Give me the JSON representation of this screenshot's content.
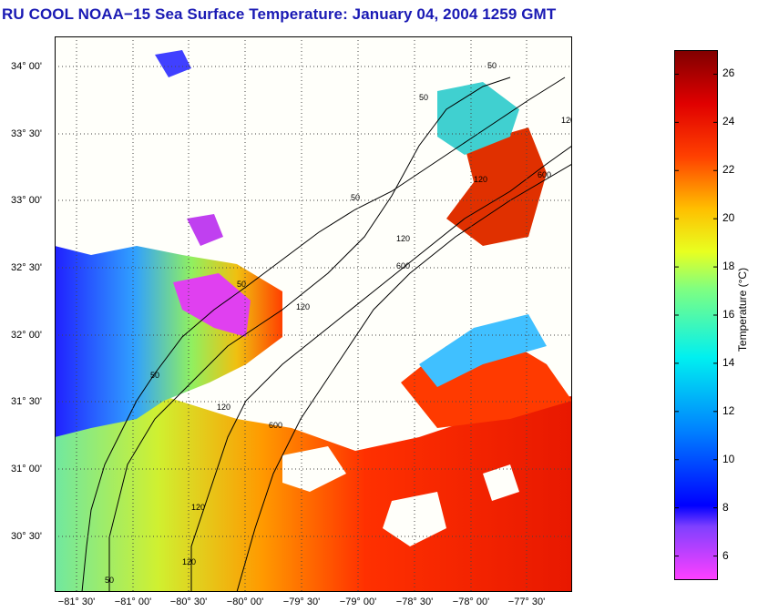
{
  "title": "RU COOL  NOAA−15  Sea Surface Temperature:  January 04, 2004 1259 GMT",
  "lat_labels": [
    "34° 00'",
    "33° 30'",
    "33° 00'",
    "32° 30'",
    "32° 00'",
    "31° 30'",
    "31° 00'",
    "30° 30'"
  ],
  "lon_labels": [
    "−81° 30'",
    "−81° 00'",
    "−80° 30'",
    "−80° 00'",
    "−79° 30'",
    "−79° 00'",
    "−78° 30'",
    "−78° 00'",
    "−77° 30'"
  ],
  "colorbar": {
    "title": "Temperature (°C)",
    "ticks": [
      "26",
      "24",
      "22",
      "20",
      "18",
      "16",
      "14",
      "12",
      "10",
      "8",
      "6"
    ],
    "range": [
      5,
      27
    ]
  },
  "contour_labels": [
    "50",
    "50",
    "50",
    "50",
    "50",
    "50",
    "120",
    "120",
    "120",
    "120",
    "120",
    "120",
    "120",
    "600",
    "600",
    "600"
  ],
  "colors": {
    "title": "#1a1ab4",
    "land": "#fffffa",
    "grid": "#444444"
  }
}
